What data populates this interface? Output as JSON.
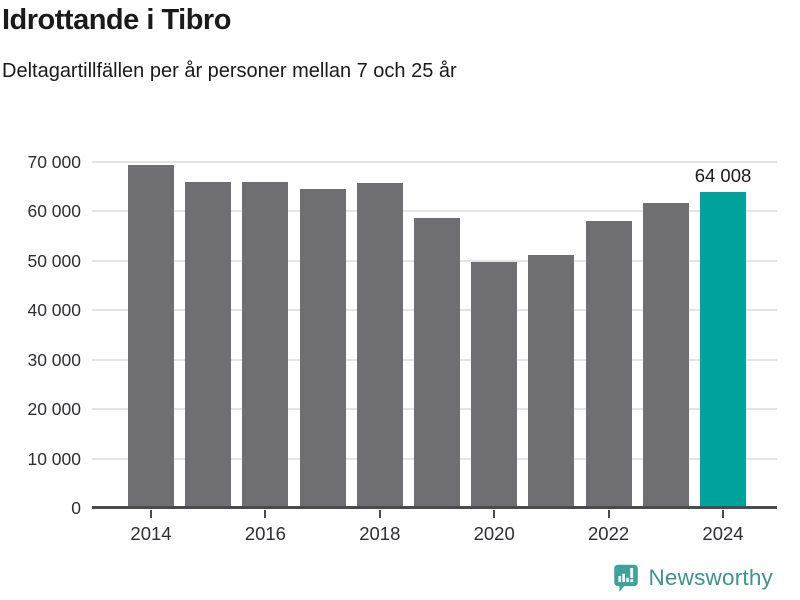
{
  "header": {
    "title": "Idrottande i Tibro",
    "subtitle": "Deltagartillfällen per år personer mellan 7 och 25 år"
  },
  "chart_data": {
    "type": "bar",
    "title": "Idrottande i Tibro",
    "subtitle": "Deltagartillfällen per år personer mellan 7 och 25 år",
    "categories": [
      "2014",
      "2015",
      "2016",
      "2017",
      "2018",
      "2019",
      "2020",
      "2021",
      "2022",
      "2023",
      "2024"
    ],
    "values": [
      69400,
      66000,
      66000,
      64500,
      65700,
      58700,
      49700,
      51100,
      58000,
      61700,
      64008
    ],
    "highlight_index": 10,
    "highlight_value_label": "64 008",
    "ylim": [
      0,
      70000
    ],
    "ytick_step": 10000,
    "ytick_labels": [
      "0",
      "10 000",
      "20 000",
      "30 000",
      "40 000",
      "50 000",
      "60 000",
      "70 000"
    ],
    "xticks": [
      {
        "index": 0,
        "label": "2014"
      },
      {
        "index": 2,
        "label": "2016"
      },
      {
        "index": 4,
        "label": "2018"
      },
      {
        "index": 6,
        "label": "2020"
      },
      {
        "index": 8,
        "label": "2022"
      },
      {
        "index": 10,
        "label": "2024"
      }
    ],
    "grid": true,
    "legend": false,
    "colors": {
      "bar": "#6E6E73",
      "highlight": "#00A39B",
      "gridline": "#E4E4E4",
      "axis": "#4A4A4F",
      "tick_label": "#2E2E33",
      "value_label": "#1A1A1A"
    }
  },
  "footer": {
    "brand": "Newsworthy",
    "brand_icon": "newsworthy-logo-icon",
    "brand_text_color": "#3E938D",
    "brand_icon_color": "#3FA19A"
  }
}
